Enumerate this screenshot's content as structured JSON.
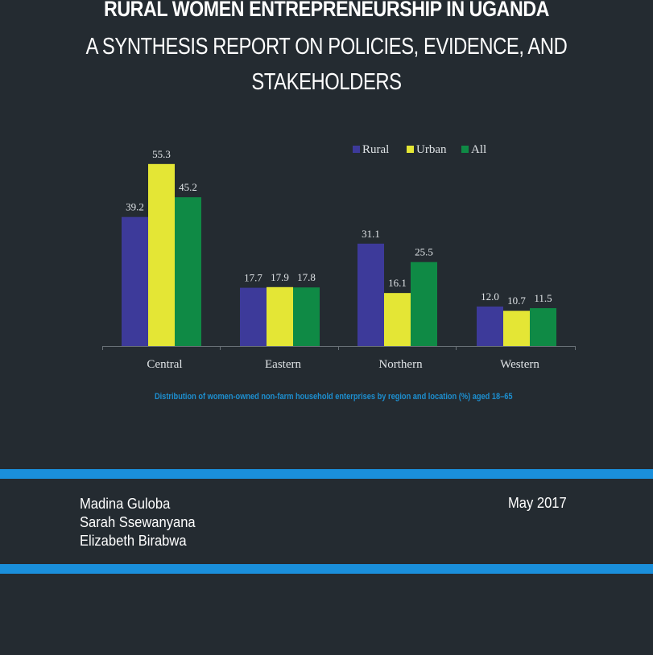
{
  "cover": {
    "title_line1": "RURAL WOMEN ENTREPRENEURSHIP IN UGANDA",
    "title_line2": "A SYNTHESIS REPORT ON POLICIES, EVIDENCE, AND",
    "title_line3": "STAKEHOLDERS",
    "caption": "Distribution of women-owned non-farm household enterprises by region and location (%) aged 18–65",
    "authors": [
      "Madina Guloba",
      "Sarah Ssewanyana",
      "Elizabeth Birabwa"
    ],
    "date": "May 2017",
    "colors": {
      "background": "#242b31",
      "stripe": "#1a8fdb",
      "caption": "#1d8fd0"
    }
  },
  "chart_data": {
    "type": "bar",
    "title": "",
    "xlabel": "",
    "ylabel": "",
    "categories": [
      "Central",
      "Eastern",
      "Northern",
      "Western"
    ],
    "series": [
      {
        "name": "Rural",
        "color": "#3d3a9a",
        "values": [
          39.2,
          17.7,
          31.1,
          12.0
        ],
        "labels": [
          "39.2",
          "17.7",
          "31.1",
          "12.0"
        ]
      },
      {
        "name": "Urban",
        "color": "#e4e635",
        "values": [
          55.3,
          17.9,
          16.1,
          10.7
        ],
        "labels": [
          "55.3",
          "17.9",
          "16.1",
          "10.7"
        ]
      },
      {
        "name": "All",
        "color": "#0f8a45",
        "values": [
          45.2,
          17.8,
          25.5,
          11.5
        ],
        "labels": [
          "45.2",
          "17.8",
          "25.5",
          "11.5"
        ]
      }
    ],
    "ylim": [
      0,
      60
    ],
    "legend": "top-right",
    "grid": false
  }
}
